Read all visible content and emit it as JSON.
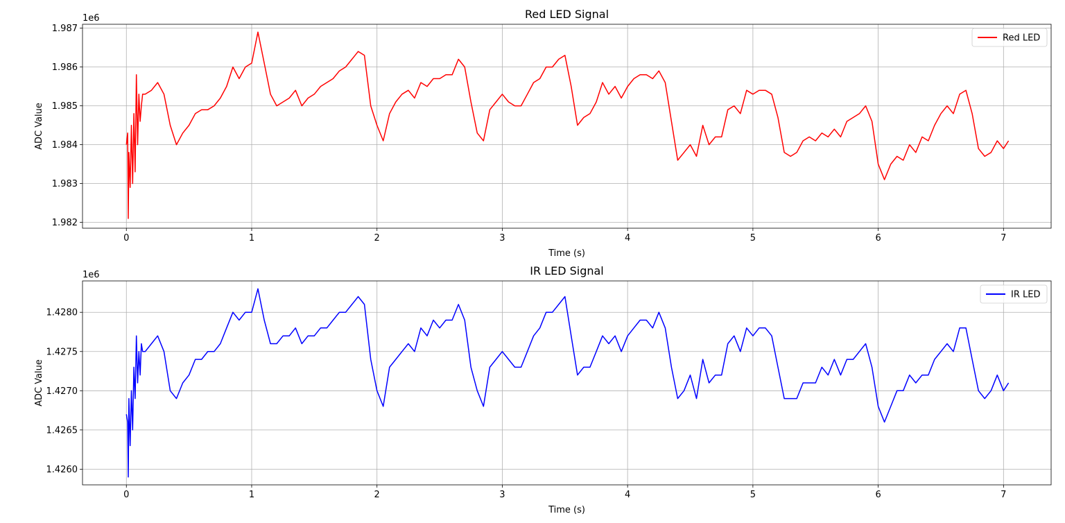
{
  "chart_data": [
    {
      "type": "line",
      "title": "Red LED Signal",
      "xlabel": "Time (s)",
      "ylabel": "ADC Value",
      "offset_label": "1e6",
      "xlim": [
        -0.35,
        7.38
      ],
      "ylim": [
        1981.85,
        1987.1
      ],
      "x_ticks": [
        0,
        1,
        2,
        3,
        4,
        5,
        6,
        7
      ],
      "y_ticks": [
        1982,
        1983,
        1984,
        1985,
        1986,
        1987
      ],
      "y_tick_labels": [
        "1.982",
        "1.983",
        "1.984",
        "1.985",
        "1.986",
        "1.987"
      ],
      "grid": true,
      "legend": "top-right",
      "series": [
        {
          "name": "Red LED",
          "color": "#ff0000",
          "x": [
            0.0,
            0.01,
            0.015,
            0.02,
            0.03,
            0.04,
            0.05,
            0.06,
            0.07,
            0.08,
            0.09,
            0.1,
            0.11,
            0.12,
            0.13,
            0.15,
            0.2,
            0.25,
            0.3,
            0.35,
            0.4,
            0.45,
            0.5,
            0.55,
            0.6,
            0.65,
            0.7,
            0.75,
            0.8,
            0.85,
            0.9,
            0.95,
            1.0,
            1.05,
            1.1,
            1.15,
            1.2,
            1.25,
            1.3,
            1.35,
            1.4,
            1.45,
            1.5,
            1.55,
            1.6,
            1.65,
            1.7,
            1.75,
            1.8,
            1.85,
            1.9,
            1.95,
            2.0,
            2.05,
            2.1,
            2.15,
            2.2,
            2.25,
            2.3,
            2.35,
            2.4,
            2.45,
            2.5,
            2.55,
            2.6,
            2.65,
            2.7,
            2.75,
            2.8,
            2.85,
            2.9,
            2.95,
            3.0,
            3.05,
            3.1,
            3.15,
            3.2,
            3.25,
            3.3,
            3.35,
            3.4,
            3.45,
            3.5,
            3.55,
            3.6,
            3.65,
            3.7,
            3.75,
            3.8,
            3.85,
            3.9,
            3.95,
            4.0,
            4.05,
            4.1,
            4.15,
            4.2,
            4.25,
            4.3,
            4.35,
            4.4,
            4.45,
            4.5,
            4.55,
            4.6,
            4.65,
            4.7,
            4.75,
            4.8,
            4.85,
            4.9,
            4.95,
            5.0,
            5.05,
            5.1,
            5.15,
            5.2,
            5.25,
            5.3,
            5.35,
            5.4,
            5.45,
            5.5,
            5.55,
            5.6,
            5.65,
            5.7,
            5.75,
            5.8,
            5.85,
            5.9,
            5.95,
            6.0,
            6.05,
            6.1,
            6.15,
            6.2,
            6.25,
            6.3,
            6.35,
            6.4,
            6.45,
            6.5,
            6.55,
            6.6,
            6.65,
            6.7,
            6.75,
            6.8,
            6.85,
            6.9,
            6.95,
            7.0,
            7.04
          ],
          "y": [
            1984.0,
            1984.3,
            1982.1,
            1983.8,
            1982.9,
            1984.5,
            1983.0,
            1984.8,
            1983.3,
            1985.8,
            1984.0,
            1985.3,
            1984.6,
            1985.0,
            1985.3,
            1985.3,
            1985.4,
            1985.6,
            1985.3,
            1984.5,
            1984.0,
            1984.3,
            1984.5,
            1984.8,
            1984.9,
            1984.9,
            1985.0,
            1985.2,
            1985.5,
            1986.0,
            1985.7,
            1986.0,
            1986.1,
            1986.9,
            1986.1,
            1985.3,
            1985.0,
            1985.1,
            1985.2,
            1985.4,
            1985.0,
            1985.2,
            1985.3,
            1985.5,
            1985.6,
            1985.7,
            1985.9,
            1986.0,
            1986.2,
            1986.4,
            1986.3,
            1985.0,
            1984.5,
            1984.1,
            1984.8,
            1985.1,
            1985.3,
            1985.4,
            1985.2,
            1985.6,
            1985.5,
            1985.7,
            1985.7,
            1985.8,
            1985.8,
            1986.2,
            1986.0,
            1985.1,
            1984.3,
            1984.1,
            1984.9,
            1985.1,
            1985.3,
            1985.1,
            1985.0,
            1985.0,
            1985.3,
            1985.6,
            1985.7,
            1986.0,
            1986.0,
            1986.2,
            1986.3,
            1985.5,
            1984.5,
            1984.7,
            1984.8,
            1985.1,
            1985.6,
            1985.3,
            1985.5,
            1985.2,
            1985.5,
            1985.7,
            1985.8,
            1985.8,
            1985.7,
            1985.9,
            1985.6,
            1984.6,
            1983.6,
            1983.8,
            1984.0,
            1983.7,
            1984.5,
            1984.0,
            1984.2,
            1984.2,
            1984.9,
            1985.0,
            1984.8,
            1985.4,
            1985.3,
            1985.4,
            1985.4,
            1985.3,
            1984.7,
            1983.8,
            1983.7,
            1983.8,
            1984.1,
            1984.2,
            1984.1,
            1984.3,
            1984.2,
            1984.4,
            1984.2,
            1984.6,
            1984.7,
            1984.8,
            1985.0,
            1984.6,
            1983.5,
            1983.1,
            1983.5,
            1983.7,
            1983.6,
            1984.0,
            1983.8,
            1984.2,
            1984.1,
            1984.5,
            1984.8,
            1985.0,
            1984.8,
            1985.3,
            1985.4,
            1984.8,
            1983.9,
            1983.7,
            1983.8,
            1984.1,
            1983.9,
            1984.1
          ]
        }
      ]
    },
    {
      "type": "line",
      "title": "IR LED Signal",
      "xlabel": "Time (s)",
      "ylabel": "ADC Value",
      "offset_label": "1e6",
      "xlim": [
        -0.35,
        7.38
      ],
      "ylim": [
        1425.8,
        1428.4
      ],
      "x_ticks": [
        0,
        1,
        2,
        3,
        4,
        5,
        6,
        7
      ],
      "y_ticks": [
        1426.0,
        1426.5,
        1427.0,
        1427.5,
        1428.0
      ],
      "y_tick_labels": [
        "1.4260",
        "1.4265",
        "1.4270",
        "1.4275",
        "1.4280"
      ],
      "grid": true,
      "legend": "top-right",
      "series": [
        {
          "name": "IR LED",
          "color": "#0000ff",
          "x": [
            0.0,
            0.01,
            0.015,
            0.02,
            0.03,
            0.04,
            0.05,
            0.06,
            0.07,
            0.08,
            0.09,
            0.1,
            0.11,
            0.12,
            0.13,
            0.15,
            0.2,
            0.25,
            0.3,
            0.35,
            0.4,
            0.45,
            0.5,
            0.55,
            0.6,
            0.65,
            0.7,
            0.75,
            0.8,
            0.85,
            0.9,
            0.95,
            1.0,
            1.05,
            1.1,
            1.15,
            1.2,
            1.25,
            1.3,
            1.35,
            1.4,
            1.45,
            1.5,
            1.55,
            1.6,
            1.65,
            1.7,
            1.75,
            1.8,
            1.85,
            1.9,
            1.95,
            2.0,
            2.05,
            2.1,
            2.15,
            2.2,
            2.25,
            2.3,
            2.35,
            2.4,
            2.45,
            2.5,
            2.55,
            2.6,
            2.65,
            2.7,
            2.75,
            2.8,
            2.85,
            2.9,
            2.95,
            3.0,
            3.05,
            3.1,
            3.15,
            3.2,
            3.25,
            3.3,
            3.35,
            3.4,
            3.45,
            3.5,
            3.55,
            3.6,
            3.65,
            3.7,
            3.75,
            3.8,
            3.85,
            3.9,
            3.95,
            4.0,
            4.05,
            4.1,
            4.15,
            4.2,
            4.25,
            4.3,
            4.35,
            4.4,
            4.45,
            4.5,
            4.55,
            4.6,
            4.65,
            4.7,
            4.75,
            4.8,
            4.85,
            4.9,
            4.95,
            5.0,
            5.05,
            5.1,
            5.15,
            5.2,
            5.25,
            5.3,
            5.35,
            5.4,
            5.45,
            5.5,
            5.55,
            5.6,
            5.65,
            5.7,
            5.75,
            5.8,
            5.85,
            5.9,
            5.95,
            6.0,
            6.05,
            6.1,
            6.15,
            6.2,
            6.25,
            6.3,
            6.35,
            6.4,
            6.45,
            6.5,
            6.55,
            6.6,
            6.65,
            6.7,
            6.75,
            6.8,
            6.85,
            6.9,
            6.95,
            7.0,
            7.04
          ],
          "y": [
            1426.7,
            1426.6,
            1425.9,
            1426.9,
            1426.3,
            1427.0,
            1426.5,
            1427.3,
            1426.9,
            1427.7,
            1427.1,
            1427.5,
            1427.2,
            1427.6,
            1427.5,
            1427.5,
            1427.6,
            1427.7,
            1427.5,
            1427.0,
            1426.9,
            1427.1,
            1427.2,
            1427.4,
            1427.4,
            1427.5,
            1427.5,
            1427.6,
            1427.8,
            1428.0,
            1427.9,
            1428.0,
            1428.0,
            1428.3,
            1427.9,
            1427.6,
            1427.6,
            1427.7,
            1427.7,
            1427.8,
            1427.6,
            1427.7,
            1427.7,
            1427.8,
            1427.8,
            1427.9,
            1428.0,
            1428.0,
            1428.1,
            1428.2,
            1428.1,
            1427.4,
            1427.0,
            1426.8,
            1427.3,
            1427.4,
            1427.5,
            1427.6,
            1427.5,
            1427.8,
            1427.7,
            1427.9,
            1427.8,
            1427.9,
            1427.9,
            1428.1,
            1427.9,
            1427.3,
            1427.0,
            1426.8,
            1427.3,
            1427.4,
            1427.5,
            1427.4,
            1427.3,
            1427.3,
            1427.5,
            1427.7,
            1427.8,
            1428.0,
            1428.0,
            1428.1,
            1428.2,
            1427.7,
            1427.2,
            1427.3,
            1427.3,
            1427.5,
            1427.7,
            1427.6,
            1427.7,
            1427.5,
            1427.7,
            1427.8,
            1427.9,
            1427.9,
            1427.8,
            1428.0,
            1427.8,
            1427.3,
            1426.9,
            1427.0,
            1427.2,
            1426.9,
            1427.4,
            1427.1,
            1427.2,
            1427.2,
            1427.6,
            1427.7,
            1427.5,
            1427.8,
            1427.7,
            1427.8,
            1427.8,
            1427.7,
            1427.3,
            1426.9,
            1426.9,
            1426.9,
            1427.1,
            1427.1,
            1427.1,
            1427.3,
            1427.2,
            1427.4,
            1427.2,
            1427.4,
            1427.4,
            1427.5,
            1427.6,
            1427.3,
            1426.8,
            1426.6,
            1426.8,
            1427.0,
            1427.0,
            1427.2,
            1427.1,
            1427.2,
            1427.2,
            1427.4,
            1427.5,
            1427.6,
            1427.5,
            1427.8,
            1427.8,
            1427.4,
            1427.0,
            1426.9,
            1427.0,
            1427.2,
            1427.0,
            1427.1
          ]
        }
      ]
    }
  ]
}
